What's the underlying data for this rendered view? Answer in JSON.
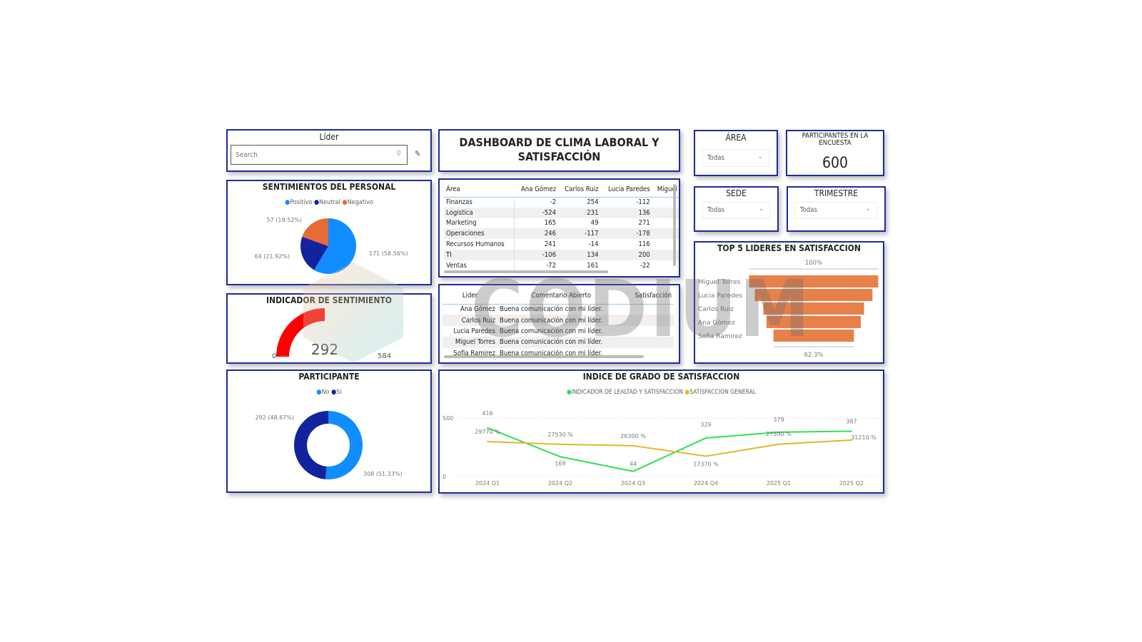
{
  "lider_slicer": {
    "title": "Líder",
    "search_placeholder": "Search"
  },
  "header": {
    "title_line1": "DASHBOARD DE CLIMA LABORAL Y",
    "title_line2": "SATISFACCIÓN"
  },
  "filters": {
    "area": {
      "title": "ÁREA",
      "value": "Todas"
    },
    "sede": {
      "title": "SEDE",
      "value": "Todas"
    },
    "trimestre": {
      "title": "TRIMESTRE",
      "value": "Todas"
    }
  },
  "card": {
    "title_line1": "PARTICIPANTES EN LA",
    "title_line2": "ENCUESTA",
    "value": "600"
  },
  "matrix": {
    "columns": [
      "Área",
      "Ana Gómez",
      "Carlos Ruiz",
      "Lucia Paredes",
      "Miguel"
    ],
    "rows": [
      [
        "Finanzas",
        "-2",
        "254",
        "-112"
      ],
      [
        "Logistica",
        "-524",
        "231",
        "136"
      ],
      [
        "Marketing",
        "165",
        "49",
        "271"
      ],
      [
        "Operaciones",
        "246",
        "-117",
        "-178"
      ],
      [
        "Recursos Humanos",
        "241",
        "-14",
        "116"
      ],
      [
        "TI",
        "-106",
        "134",
        "200"
      ],
      [
        "Ventas",
        "-72",
        "161",
        "-22"
      ]
    ]
  },
  "comments": {
    "columns": [
      "Lider",
      "Comentario Abierto",
      "Satisfacción"
    ],
    "rows": [
      [
        "Ana Gómez",
        "Buena comunicación con mi líder."
      ],
      [
        "Carlos Ruiz",
        "Buena comunicación con mi líder."
      ],
      [
        "Lucia Paredes",
        "Buena comunicación con mi líder."
      ],
      [
        "Miguel Torres",
        "Buena comunicación con mi líder."
      ],
      [
        "Sofia Ramirez",
        "Buena comunicación con mi líder."
      ]
    ]
  },
  "watermark": "CODIUM",
  "chart_data": [
    {
      "type": "pie",
      "title": "SENTIMIENTOS DEL PERSONAL",
      "legend": "top",
      "categories": [
        "Positivo",
        "Neutral",
        "Negativo"
      ],
      "values": [
        171,
        64,
        57
      ],
      "labels": [
        "171 (58.56%)",
        "64 (21.92%)",
        "57 (19.52%)"
      ],
      "colors": [
        "#118DFF",
        "#12239E",
        "#E66C37"
      ]
    },
    {
      "type": "gauge",
      "title": "INDICADOR DE SENTIMIENTO",
      "value": 292,
      "min": 0,
      "max": 584,
      "value_label": "292",
      "min_label": "0",
      "max_label": "584",
      "color": "#FF0000"
    },
    {
      "type": "donut",
      "title": "PARTICIPANTE",
      "legend": "top",
      "categories": [
        "No",
        "Si"
      ],
      "values": [
        308,
        292
      ],
      "labels": [
        "308 (51.33%)",
        "292 (48.67%)"
      ],
      "colors": [
        "#118DFF",
        "#12239E"
      ]
    },
    {
      "type": "funnel",
      "title": "TOP 5 LIDERES EN SATISFACCION",
      "categories": [
        "Miguel Torres",
        "Lucia Paredes",
        "Carlos Ruiz",
        "Ana Gómez",
        "Sofia Ramirez"
      ],
      "values": [
        100,
        91,
        78,
        73,
        62.3
      ],
      "top_label": "100%",
      "bottom_label": "62.3%",
      "color": "#E8804A"
    },
    {
      "type": "line",
      "title": "INDICE DE GRADO DE SATISFACCION",
      "legend": "top",
      "categories": [
        "2024 Q1",
        "2024 Q2",
        "2024 Q3",
        "2024 Q4",
        "2025 Q1",
        "2025 Q2"
      ],
      "ylim": [
        0,
        500
      ],
      "yticks": [
        "0",
        "500"
      ],
      "grid": true,
      "series": [
        {
          "name": "INDICADOR DE LEALTAD Y SATISFACCION",
          "color": "#2DE05A",
          "values": [
            416,
            169,
            44,
            329,
            379,
            387
          ],
          "labels": [
            "416",
            "169",
            "44",
            "329",
            "379",
            "387"
          ]
        },
        {
          "name": "SATISFACCION GENERAL",
          "color": "#E0B92A",
          "values": [
            297.7,
            275.3,
            263.0,
            173.7,
            275.9,
            312.1
          ],
          "labels": [
            "29770 %",
            "27530 %",
            "26300 %",
            "17370 %",
            "27590 %",
            "31210 %"
          ]
        }
      ]
    }
  ]
}
